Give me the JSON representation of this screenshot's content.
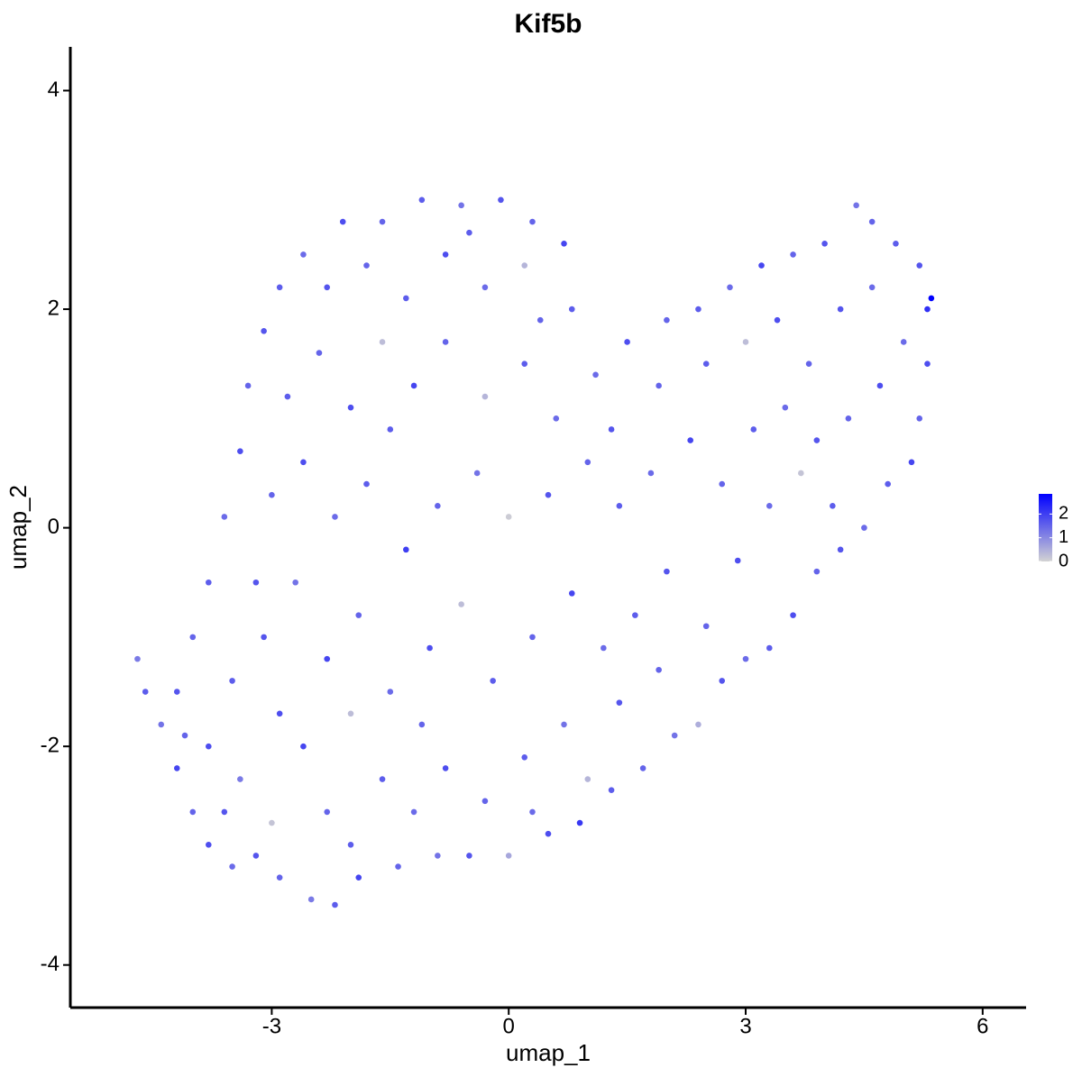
{
  "chart_data": {
    "type": "scatter",
    "title": "Kif5b",
    "x_label": "umap_1",
    "y_label": "umap_2",
    "x": [
      -4.7,
      -4.6,
      -4.4,
      -4.2,
      -4.0,
      -3.8,
      -3.5,
      -3.2,
      -2.9,
      -2.5,
      -2.2,
      -1.9,
      -1.4,
      -0.9,
      -0.5,
      0.0,
      0.5,
      0.9,
      1.3,
      1.7,
      2.1,
      2.4,
      2.7,
      3.0,
      3.3,
      3.6,
      3.9,
      4.2,
      4.5,
      4.8,
      5.1,
      5.2,
      5.3,
      5.3,
      5.35,
      5.2,
      4.9,
      4.6,
      4.4,
      4.0,
      3.6,
      3.2,
      2.8,
      2.4,
      2.0,
      1.5,
      1.1,
      0.8,
      0.7,
      0.3,
      -0.1,
      -0.6,
      -1.1,
      -1.6,
      -2.1,
      -2.6,
      -2.9,
      -3.1,
      -3.3,
      -3.4,
      -3.6,
      -3.8,
      -4.0,
      -4.2,
      -3.8,
      -3.4,
      -3.0,
      -2.6,
      -2.3,
      -2.0,
      -1.6,
      -1.2,
      -0.8,
      -0.3,
      0.2,
      0.7,
      1.0,
      1.4,
      1.9,
      -3.5,
      -3.1,
      -2.7,
      -2.3,
      -1.9,
      -1.5,
      -1.0,
      -0.6,
      -0.2,
      0.3,
      0.8,
      1.2,
      1.6,
      2.0,
      2.5,
      2.9,
      3.3,
      3.7,
      4.1,
      -3.0,
      -2.6,
      -2.2,
      -1.8,
      -1.3,
      -0.9,
      -0.4,
      0.0,
      0.5,
      1.0,
      1.4,
      1.8,
      2.3,
      2.7,
      3.1,
      3.5,
      3.9,
      4.3,
      4.7,
      5.0,
      -2.8,
      -2.4,
      -2.0,
      -1.6,
      -1.2,
      -0.8,
      -0.3,
      0.2,
      0.6,
      1.3,
      1.9,
      2.5,
      3.0,
      3.4,
      3.8,
      4.2,
      4.6,
      -2.3,
      -1.8,
      -1.3,
      -0.8,
      -0.3,
      0.2,
      -0.5,
      0.4,
      -4.1,
      -3.6,
      -2.0,
      -1.1,
      0.3,
      -2.9,
      -1.5,
      -3.2
    ],
    "y": [
      -1.2,
      -1.5,
      -1.8,
      -2.2,
      -2.6,
      -2.9,
      -3.1,
      -3.0,
      -3.2,
      -3.4,
      -3.45,
      -3.2,
      -3.1,
      -3.0,
      -3.0,
      -3.0,
      -2.8,
      -2.7,
      -2.4,
      -2.2,
      -1.9,
      -1.8,
      -1.4,
      -1.2,
      -1.1,
      -0.8,
      -0.4,
      -0.2,
      0.0,
      0.4,
      0.6,
      1.0,
      1.5,
      2.0,
      2.1,
      2.4,
      2.6,
      2.8,
      2.95,
      2.6,
      2.5,
      2.4,
      2.2,
      2.0,
      1.9,
      1.7,
      1.4,
      2.0,
      2.6,
      2.8,
      3.0,
      2.95,
      3.0,
      2.8,
      2.8,
      2.5,
      2.2,
      1.8,
      1.3,
      0.7,
      0.1,
      -0.5,
      -1.0,
      -1.5,
      -2.0,
      -2.3,
      -2.7,
      -2.0,
      -2.6,
      -1.7,
      -2.3,
      -2.6,
      -2.2,
      -2.5,
      -2.1,
      -1.8,
      -2.3,
      -1.6,
      -1.3,
      -1.4,
      -1.0,
      -0.5,
      -1.2,
      -0.8,
      -1.5,
      -1.1,
      -0.7,
      -1.4,
      -1.0,
      -0.6,
      -1.1,
      -0.8,
      -0.4,
      -0.9,
      -0.3,
      0.2,
      0.5,
      0.2,
      0.3,
      0.6,
      0.1,
      0.4,
      -0.2,
      0.2,
      0.5,
      0.1,
      0.3,
      0.6,
      0.2,
      0.5,
      0.8,
      0.4,
      0.9,
      1.1,
      0.8,
      1.0,
      1.3,
      1.7,
      1.2,
      1.6,
      1.1,
      1.7,
      1.3,
      1.7,
      1.2,
      1.5,
      1.0,
      0.9,
      1.3,
      1.5,
      1.7,
      1.9,
      1.5,
      2.0,
      2.2,
      2.2,
      2.4,
      2.1,
      2.5,
      2.2,
      2.4,
      2.7,
      1.9,
      -1.9,
      -2.6,
      -2.9,
      -1.8,
      -2.6,
      -1.7,
      0.9,
      -0.5
    ],
    "values": [
      1.2,
      1.6,
      1.3,
      1.9,
      1.5,
      1.8,
      1.4,
      1.7,
      1.5,
      1.2,
      1.6,
      1.9,
      1.5,
      1.3,
      1.7,
      0.6,
      1.8,
      2.1,
      1.6,
      1.5,
      1.3,
      0.5,
      1.7,
      1.4,
      1.6,
      1.8,
      1.5,
      1.7,
      1.4,
      1.6,
      1.9,
      1.5,
      1.8,
      2.2,
      2.85,
      1.7,
      1.6,
      1.5,
      1.3,
      1.7,
      1.5,
      1.9,
      1.4,
      1.6,
      1.5,
      1.8,
      1.4,
      1.6,
      1.9,
      1.5,
      1.7,
      1.3,
      1.6,
      1.5,
      1.8,
      1.4,
      1.6,
      1.7,
      1.5,
      1.8,
      1.4,
      1.6,
      1.5,
      1.7,
      1.8,
      1.2,
      0.2,
      1.9,
      1.5,
      0.3,
      1.6,
      1.4,
      1.8,
      1.5,
      1.6,
      1.3,
      0.4,
      1.7,
      1.5,
      1.6,
      1.7,
      1.3,
      1.9,
      1.5,
      1.4,
      1.8,
      0.3,
      1.6,
      1.5,
      1.9,
      1.4,
      1.6,
      1.7,
      1.5,
      1.8,
      1.4,
      0.2,
      1.6,
      1.5,
      1.8,
      1.4,
      1.6,
      2.0,
      1.5,
      1.3,
      0.1,
      1.7,
      1.5,
      1.6,
      1.4,
      1.9,
      1.5,
      1.6,
      1.4,
      1.7,
      1.5,
      1.8,
      1.4,
      1.6,
      1.5,
      1.8,
      0.3,
      1.9,
      1.5,
      0.4,
      1.6,
      1.4,
      1.7,
      1.5,
      1.6,
      0.3,
      1.8,
      1.5,
      1.7,
      1.4,
      1.7,
      1.5,
      1.6,
      1.8,
      1.4,
      0.4,
      1.6,
      1.5,
      1.5,
      1.7,
      1.6,
      1.5,
      1.4,
      1.8,
      1.6,
      1.7
    ],
    "xlim": [
      -5.55,
      6.55
    ],
    "ylim": [
      -4.39,
      4.4
    ],
    "xticks": [
      -3,
      0,
      3,
      6
    ],
    "yticks": [
      -4,
      -2,
      0,
      2,
      4
    ],
    "color_scale": {
      "low": "#d3d3d3",
      "high": "#0000ff"
    },
    "colorbar_lim": [
      0,
      2.85
    ],
    "colorbar_ticks": [
      0,
      1,
      2
    ]
  }
}
